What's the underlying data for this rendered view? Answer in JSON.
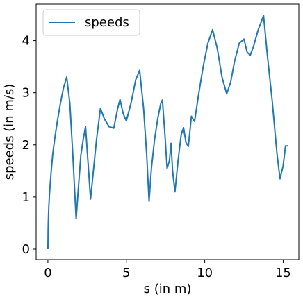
{
  "chart_data": {
    "type": "line",
    "title": "",
    "xlabel": "s (in m)",
    "ylabel": "speeds (in m/s)",
    "xlim": [
      -0.75,
      16.0
    ],
    "ylim": [
      -0.2,
      4.7
    ],
    "xticks": [
      0,
      5,
      10,
      15
    ],
    "xtick_labels": [
      "0",
      "5",
      "10",
      "15"
    ],
    "yticks": [
      0,
      1,
      2,
      3,
      4
    ],
    "ytick_labels": [
      "0",
      "1",
      "2",
      "3",
      "4"
    ],
    "grid": false,
    "legend_position": "top-left",
    "colors": {
      "series": "#1f77b4",
      "axes": "#000000",
      "legend_border": "#cccccc"
    },
    "series": [
      {
        "name": "speeds",
        "x": [
          0.0,
          0.02,
          0.05,
          0.1,
          0.2,
          0.3,
          0.45,
          0.6,
          0.8,
          1.0,
          1.2,
          1.4,
          1.6,
          1.8,
          1.95,
          2.1,
          2.25,
          2.4,
          2.55,
          2.72,
          2.9,
          3.1,
          3.35,
          3.6,
          3.9,
          4.2,
          4.45,
          4.6,
          4.8,
          5.0,
          5.3,
          5.6,
          5.85,
          6.1,
          6.3,
          6.45,
          6.6,
          6.8,
          7.0,
          7.2,
          7.3,
          7.45,
          7.6,
          7.75,
          7.85,
          7.95,
          8.1,
          8.3,
          8.5,
          8.65,
          8.8,
          8.95,
          9.05,
          9.15,
          9.35,
          9.6,
          9.9,
          10.2,
          10.5,
          10.8,
          11.1,
          11.4,
          11.65,
          11.9,
          12.2,
          12.5,
          12.7,
          12.9,
          13.1,
          13.4,
          13.75,
          14.0,
          14.3,
          14.6,
          14.8,
          15.0,
          15.15,
          15.3
        ],
        "values": [
          0.0,
          0.45,
          0.75,
          1.05,
          1.45,
          1.8,
          2.15,
          2.45,
          2.8,
          3.1,
          3.3,
          2.8,
          1.75,
          0.58,
          1.2,
          1.8,
          2.1,
          2.35,
          1.7,
          0.96,
          1.5,
          2.1,
          2.7,
          2.5,
          2.35,
          2.32,
          2.7,
          2.87,
          2.6,
          2.46,
          2.8,
          3.25,
          3.43,
          2.7,
          1.8,
          0.92,
          1.55,
          2.1,
          2.5,
          2.8,
          2.86,
          2.25,
          1.55,
          1.7,
          2.03,
          1.5,
          1.1,
          1.7,
          2.2,
          2.33,
          2.05,
          1.97,
          2.25,
          2.55,
          2.45,
          2.95,
          3.5,
          3.95,
          4.21,
          3.85,
          3.3,
          2.98,
          3.2,
          3.6,
          3.95,
          4.03,
          3.78,
          3.72,
          3.88,
          4.2,
          4.48,
          3.7,
          2.85,
          1.85,
          1.35,
          1.6,
          1.98,
          1.98
        ]
      }
    ]
  }
}
